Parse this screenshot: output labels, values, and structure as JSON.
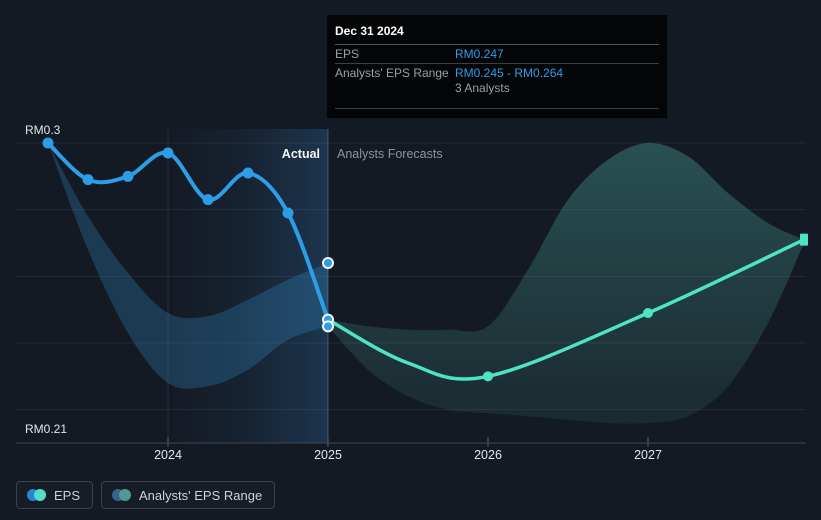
{
  "tooltip": {
    "date": "Dec 31 2024",
    "rows": [
      {
        "label": "EPS",
        "value": "RM0.247"
      },
      {
        "label": "Analysts' EPS Range",
        "value": "RM0.245 - RM0.264",
        "note": "3 Analysts"
      }
    ]
  },
  "labels": {
    "actual": "Actual",
    "forecasts": "Analysts Forecasts",
    "y_top": "RM0.3",
    "y_bottom": "RM0.21"
  },
  "legend": [
    {
      "label": "EPS",
      "colors": [
        "#2586D8",
        "#52DEC9"
      ]
    },
    {
      "label": "Analysts' EPS Range",
      "colors": [
        "#33678A",
        "#4F9A93"
      ]
    }
  ],
  "colors": {
    "background": "#141A24",
    "eps_line": "#2C9DE6",
    "eps_point": "#2C9DE6",
    "forecast_line": "#4FE3C5",
    "actual_range_fill": "rgba(54,142,205,0.28)",
    "forecast_range_rgb": "96,220,196",
    "highlight_rgb": "52,135,205",
    "gridline": "rgba(255,255,255,0.07)",
    "axis_line": "#3F4650",
    "tick": "#5A616B",
    "divider_line": "rgba(160,205,245,0.30)",
    "year_gridline": "rgba(120,170,220,0.14)",
    "point_ring": "#F5F7F9",
    "tooltip_value": "#2D9FE8"
  },
  "chart_data": {
    "type": "line",
    "title": "EPS — Actual vs Analysts Forecasts",
    "unit": "RM",
    "ylim": [
      0.21,
      0.3
    ],
    "grid_values": [
      0.3,
      0.28,
      0.26,
      0.24,
      0.22
    ],
    "y_axis_labels": [
      {
        "value": 0.3,
        "label": "RM0.3"
      },
      {
        "value": 0.21,
        "label": "RM0.21"
      }
    ],
    "x_ticks": [
      {
        "year": 2024,
        "label": "2024"
      },
      {
        "year": 2025,
        "label": "2025"
      },
      {
        "year": 2026,
        "label": "2026"
      },
      {
        "year": 2027,
        "label": "2027"
      }
    ],
    "divider_year": 2025,
    "highlight_period": {
      "from": 2024,
      "to": 2025
    },
    "actual": {
      "name": "EPS (actual)",
      "x": [
        2023.25,
        2023.5,
        2023.75,
        2024.0,
        2024.25,
        2024.5,
        2024.75,
        2025.0
      ],
      "values": [
        0.3,
        0.289,
        0.29,
        0.297,
        0.283,
        0.291,
        0.279,
        0.247
      ]
    },
    "forecast": {
      "name": "EPS (analysts forecast)",
      "x": [
        2025.0,
        2025.5,
        2026.0,
        2027.0,
        2027.975
      ],
      "values": [
        0.247,
        0.234,
        0.23,
        0.249,
        0.271
      ],
      "marker_x": [
        2026.0,
        2027.0
      ],
      "end_marker_x": 2027.975
    },
    "actual_range": {
      "name": "Analysts' EPS Range (actual period)",
      "x": [
        2023.25,
        2023.5,
        2023.75,
        2024.0,
        2024.25,
        2024.5,
        2024.75,
        2025.0
      ],
      "lo": [
        0.3,
        0.268,
        0.243,
        0.228,
        0.227,
        0.232,
        0.241,
        0.245
      ],
      "hi": [
        0.3,
        0.278,
        0.261,
        0.249,
        0.248,
        0.253,
        0.259,
        0.264
      ]
    },
    "forecast_range": {
      "name": "Analysts' EPS Range (forecast period)",
      "x": [
        2025.0,
        2025.25,
        2025.5,
        2025.75,
        2026.0,
        2026.25,
        2026.5,
        2026.75,
        2027.0,
        2027.25,
        2027.5,
        2027.75,
        2027.975
      ],
      "lo": [
        0.245,
        0.232,
        0.224,
        0.22,
        0.219,
        0.218,
        0.217,
        0.216,
        0.216,
        0.218,
        0.227,
        0.246,
        0.27
      ],
      "hi": [
        0.247,
        0.245,
        0.244,
        0.244,
        0.245,
        0.262,
        0.283,
        0.295,
        0.3,
        0.296,
        0.285,
        0.276,
        0.271
      ]
    },
    "highlighted_points": [
      {
        "x": 2025.0,
        "value": 0.264
      },
      {
        "x": 2025.0,
        "value": 0.247
      },
      {
        "x": 2025.0,
        "value": 0.245
      }
    ]
  }
}
